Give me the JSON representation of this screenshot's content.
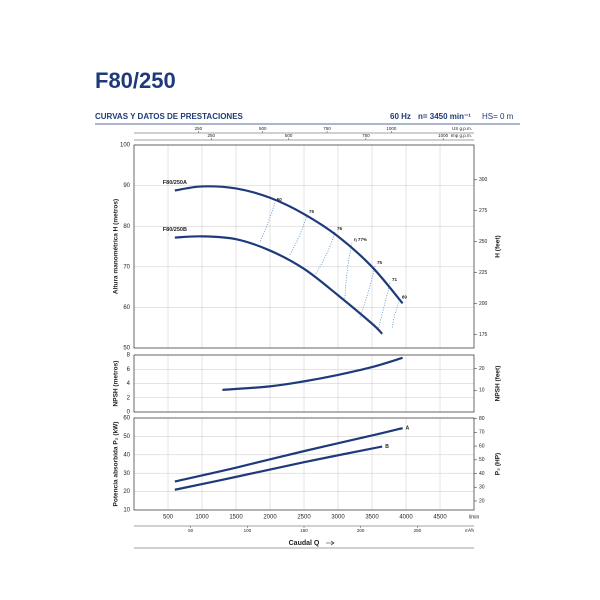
{
  "header": {
    "title": "F80/250",
    "subtitle": "CURVAS Y DATOS DE PRESTACIONES",
    "frequency": "60 Hz",
    "speed": "n= 3450 min⁻¹",
    "hs": "HS= 0 m"
  },
  "chart_data": [
    {
      "type": "line",
      "ylabel": "Altura manométrica H (metros)",
      "y2label": "H (feet)",
      "xlim": [
        0,
        5000
      ],
      "ylim": [
        50,
        100
      ],
      "yticks": [
        50,
        60,
        70,
        80,
        90,
        100
      ],
      "y2lim": [
        164.04,
        328.08
      ],
      "y2ticks": [
        175,
        200,
        225,
        250,
        275,
        300
      ],
      "grid": true,
      "label_at": "start",
      "top_axes": [
        {
          "unit": "US g.p.m.",
          "lim": [
            0,
            1320.9
          ],
          "ticks": [
            250,
            500,
            750,
            1000
          ]
        },
        {
          "unit": "Imp g.p.m.",
          "lim": [
            0,
            1099.8
          ],
          "ticks": [
            250,
            500,
            750,
            1000
          ]
        }
      ],
      "series": [
        {
          "name": "F80/250A",
          "color": "#1f3a7a",
          "x": [
            600,
            1000,
            1500,
            2000,
            2500,
            3000,
            3500,
            3950
          ],
          "values": [
            88.8,
            89.8,
            89.3,
            87,
            83,
            77.5,
            70,
            61
          ]
        },
        {
          "name": "F80/250B",
          "color": "#1f3a7a",
          "x": [
            600,
            1000,
            1500,
            2000,
            2500,
            3000,
            3500,
            3650
          ],
          "values": [
            77.2,
            77.5,
            76.8,
            74,
            69.5,
            63,
            56,
            53.5
          ]
        }
      ],
      "efficiency": [
        {
          "label": "50",
          "x": [
            2070,
            1850
          ],
          "values": [
            85.7,
            76.1
          ]
        },
        {
          "label": "75",
          "x": [
            2545,
            2290
          ],
          "values": [
            82.8,
            72.9
          ]
        },
        {
          "label": "76",
          "x": [
            2955,
            2660
          ],
          "values": [
            78.6,
            68
          ]
        },
        {
          "label": "η 77%",
          "x": [
            3205,
            3100
          ],
          "values": [
            75.9,
            61.8
          ]
        },
        {
          "label": "75",
          "x": [
            3545,
            3320
          ],
          "values": [
            70.2,
            57.4
          ]
        },
        {
          "label": "71",
          "x": [
            3765,
            3590
          ],
          "values": [
            66,
            54.4
          ]
        },
        {
          "label": "69",
          "x": [
            3910,
            3800
          ],
          "values": [
            61.8,
            55
          ]
        }
      ]
    },
    {
      "type": "line",
      "ylabel": "NPSH (metros)",
      "y2label": "NPSH (feet)",
      "xlim": [
        0,
        5000
      ],
      "ylim": [
        0,
        8
      ],
      "yticks": [
        0,
        2,
        4,
        6,
        8
      ],
      "y2lim": [
        0,
        26.25
      ],
      "y2ticks": [
        10,
        20
      ],
      "grid": true,
      "series": [
        {
          "color": "#1f3a7a",
          "x": [
            1300,
            2000,
            2500,
            3000,
            3500,
            3950
          ],
          "values": [
            3.1,
            3.6,
            4.3,
            5.2,
            6.3,
            7.6
          ]
        }
      ]
    },
    {
      "type": "line",
      "ylabel": "Potencia absorbida P₂ (kW)",
      "y2label": "P₂ (HP)",
      "xlim": [
        0,
        5000
      ],
      "ylim": [
        10,
        60
      ],
      "yticks": [
        10,
        20,
        30,
        40,
        50,
        60
      ],
      "y2lim": [
        13.41,
        80.46
      ],
      "y2ticks": [
        20,
        30,
        40,
        50,
        60,
        70,
        80
      ],
      "grid": true,
      "label_at": "end",
      "xticks": [
        500,
        1000,
        1500,
        2000,
        2500,
        3000,
        3500,
        4000,
        4500
      ],
      "xunit": "l/min",
      "xlabel": "Caudal Q",
      "bottom_axes": [
        {
          "unit": "m³/h",
          "lim": [
            0,
            300
          ],
          "ticks": [
            50,
            100,
            150,
            200,
            250
          ]
        }
      ],
      "series": [
        {
          "name": "A",
          "color": "#1f3a7a",
          "x": [
            600,
            1500,
            2500,
            3500,
            3950
          ],
          "values": [
            25.5,
            33,
            42,
            50.5,
            54.5
          ]
        },
        {
          "name": "B",
          "color": "#1f3a7a",
          "x": [
            600,
            1500,
            2500,
            3650
          ],
          "values": [
            21,
            28,
            36,
            44.5
          ]
        }
      ]
    }
  ]
}
